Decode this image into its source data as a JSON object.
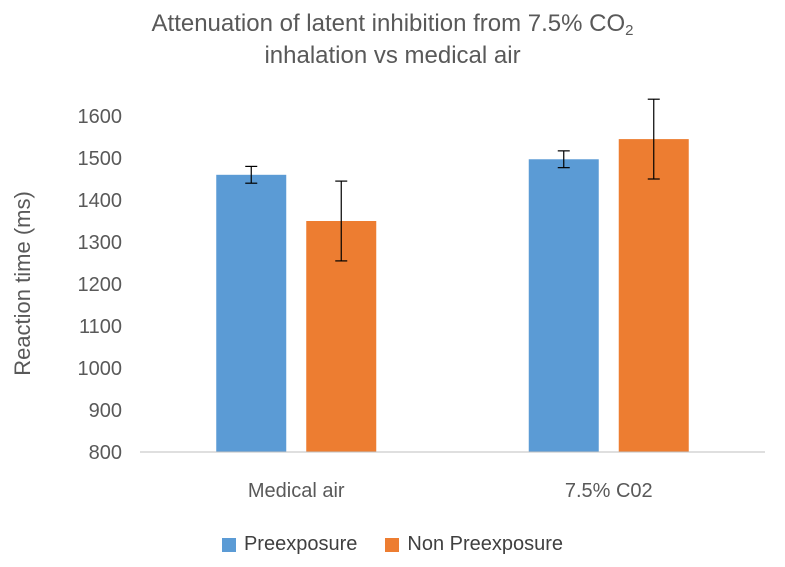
{
  "chart_data": {
    "type": "bar",
    "title_main": "Attenuation of latent inhibition from 7.5% CO",
    "title_sub": "2",
    "title_line2": "inhalation vs medical air",
    "ylabel": "Reaction time (ms)",
    "xlabel": "",
    "ylim": [
      800,
      1650
    ],
    "yticks": [
      800,
      900,
      1000,
      1100,
      1200,
      1300,
      1400,
      1500,
      1600
    ],
    "categories": [
      "Medical air",
      "7.5% C02"
    ],
    "series": [
      {
        "name": "Preexposure",
        "color": "#5B9BD5",
        "values": [
          1460,
          1497
        ],
        "errors": [
          20,
          20
        ]
      },
      {
        "name": "Non Preexposure",
        "color": "#ED7D31",
        "values": [
          1350,
          1545
        ],
        "errors": [
          95,
          95
        ]
      }
    ],
    "grid": false,
    "legend_position": "bottom"
  }
}
